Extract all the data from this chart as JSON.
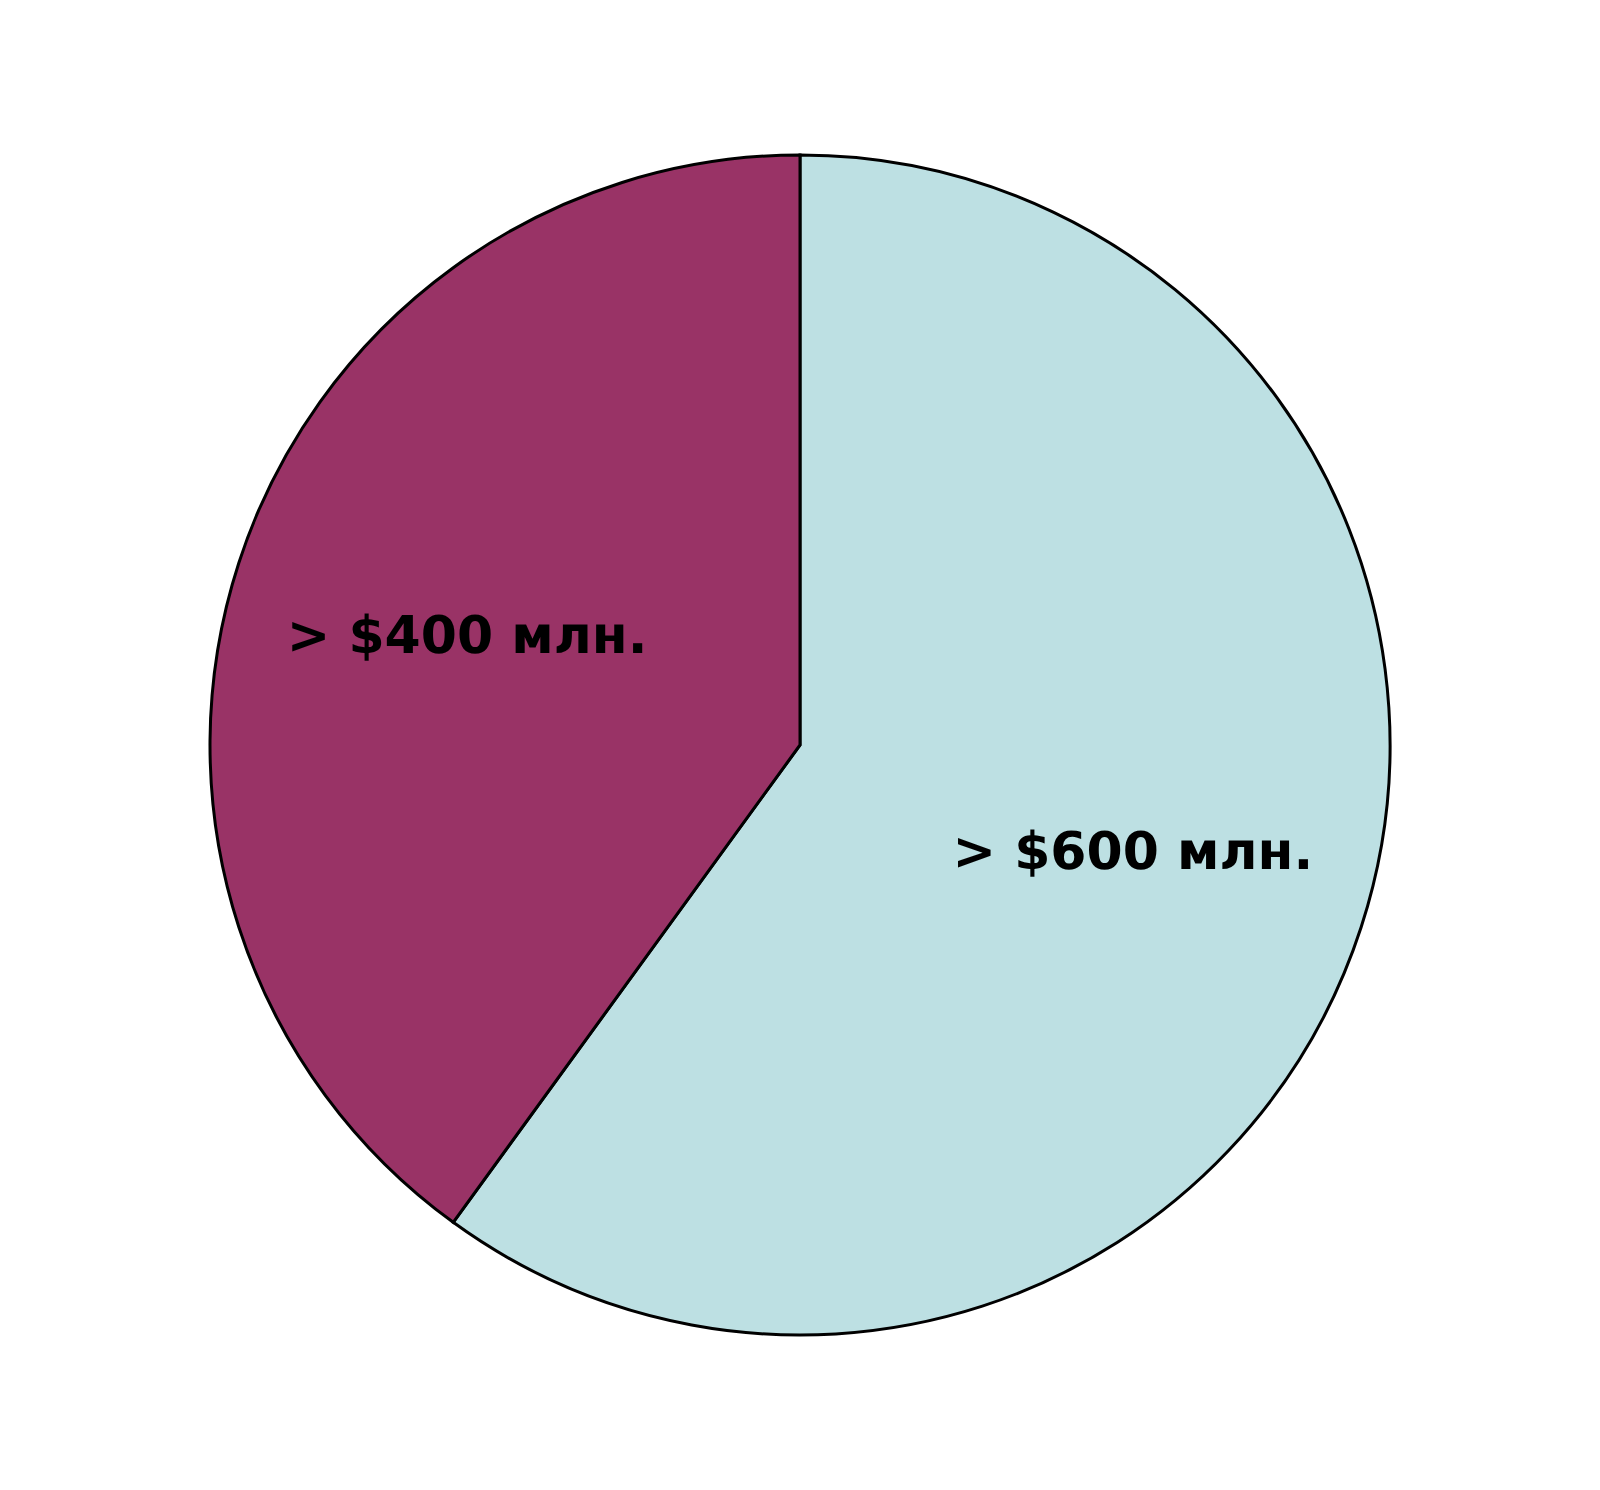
{
  "chart_data": {
    "type": "pie",
    "categories": [
      null,
      null
    ],
    "values": [
      600,
      400
    ],
    "colors": [
      "#bde0e3",
      "#993366"
    ],
    "value_labels": [
      "> $600 млн.",
      "> $400 млн."
    ]
  }
}
